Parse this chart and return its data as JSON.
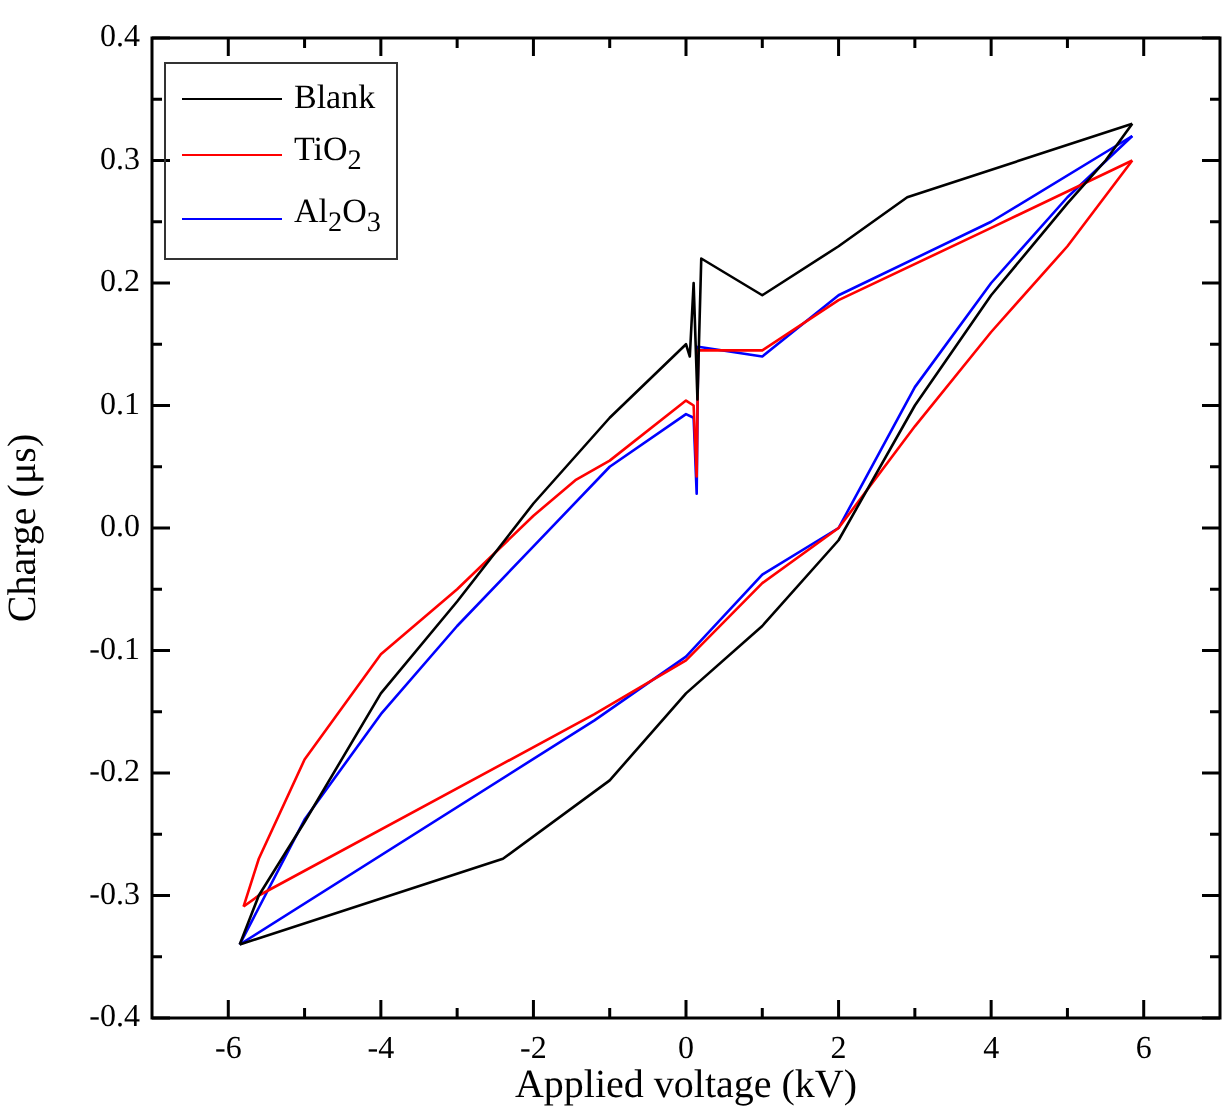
{
  "chart_data": {
    "type": "line",
    "xlabel": "Applied voltage (kV)",
    "ylabel": "Charge (μs)",
    "xlim": [
      -7,
      7
    ],
    "ylim": [
      -0.4,
      0.4
    ],
    "xticks": [
      -6,
      {
        "value": -5,
        "label": null
      },
      -4,
      {
        "value": -3,
        "label": null
      },
      -2,
      {
        "value": -1,
        "label": null
      },
      0,
      {
        "value": 1,
        "label": null
      },
      2,
      {
        "value": 3,
        "label": null
      },
      4,
      {
        "value": 5,
        "label": null
      },
      6
    ],
    "yticks": [
      {
        "value": -0.4,
        "label": "-0.4"
      },
      {
        "value": -0.35,
        "label": null
      },
      {
        "value": -0.3,
        "label": "-0.3"
      },
      {
        "value": -0.25,
        "label": null
      },
      {
        "value": -0.2,
        "label": "-0.2"
      },
      {
        "value": -0.15,
        "label": null
      },
      {
        "value": -0.1,
        "label": "-0.1"
      },
      {
        "value": -0.05,
        "label": null
      },
      {
        "value": 0,
        "label": "0.0"
      },
      {
        "value": 0.05,
        "label": null
      },
      {
        "value": 0.1,
        "label": "0.1"
      },
      {
        "value": 0.15,
        "label": null
      },
      {
        "value": 0.2,
        "label": "0.2"
      },
      {
        "value": 0.25,
        "label": null
      },
      {
        "value": 0.3,
        "label": "0.3"
      },
      {
        "value": 0.35,
        "label": null
      },
      {
        "value": 0.4,
        "label": "0.4"
      }
    ],
    "grid": false,
    "legend": "top left",
    "marker": "none",
    "line_style": "solid",
    "series": [
      {
        "name": "Blank",
        "color": "#000000",
        "x": [
          -5.85,
          -5.6,
          -5,
          -4,
          -3,
          -2,
          -1,
          0,
          0.05,
          0.1,
          0.15,
          0.2,
          1,
          2,
          2.9,
          5.85
        ],
        "values": [
          -0.34,
          -0.3,
          -0.24,
          -0.135,
          -0.06,
          0.02,
          0.09,
          0.15,
          0.14,
          0.2,
          0.105,
          0.22,
          0.19,
          0.23,
          0.27,
          0.33
        ]
      },
      {
        "color": "#000000",
        "x": [
          -5.85,
          -2.4,
          -1,
          0,
          1,
          2,
          3,
          4,
          5,
          5.5,
          5.85
        ],
        "values": [
          -0.34,
          -0.27,
          -0.206,
          -0.135,
          -0.08,
          -0.01,
          0.1,
          0.19,
          0.265,
          0.3,
          0.33
        ]
      },
      {
        "name": "TiO$_{2}$",
        "color": "#ff0000",
        "x": [
          -5.8,
          -5.6,
          -5,
          -4,
          -3,
          -2,
          -1.45,
          -1,
          0,
          0.1,
          0.14,
          0.16,
          1,
          2,
          4,
          5.85
        ],
        "values": [
          -0.309,
          -0.27,
          -0.189,
          -0.103,
          -0.05,
          0.01,
          0.039,
          0.055,
          0.104,
          0.1,
          0.042,
          0.145,
          0.145,
          0.186,
          0.245,
          0.3
        ]
      },
      {
        "color": "#ff0000",
        "x": [
          -5.8,
          -5.6,
          -1.2,
          0,
          1,
          2,
          3,
          4,
          5,
          5.85
        ],
        "values": [
          -0.309,
          -0.3,
          -0.152,
          -0.108,
          -0.045,
          0.0,
          0.083,
          0.16,
          0.23,
          0.3
        ]
      },
      {
        "name": "Al$_{2}$O$_{3}$",
        "color": "#0000ff",
        "x": [
          -5.85,
          -5.6,
          -5,
          -4,
          -3,
          -2,
          -1,
          0,
          0.1,
          0.14,
          0.16,
          1,
          2,
          4,
          5.85
        ],
        "values": [
          -0.34,
          -0.31,
          -0.238,
          -0.152,
          -0.08,
          -0.015,
          0.05,
          0.093,
          0.09,
          0.028,
          0.148,
          0.14,
          0.19,
          0.25,
          0.32
        ]
      },
      {
        "color": "#0000ff",
        "x": [
          -5.85,
          -1.2,
          0,
          1,
          2,
          3,
          4,
          5,
          5.85
        ],
        "values": [
          -0.34,
          -0.157,
          -0.105,
          -0.038,
          0.0,
          0.115,
          0.2,
          0.27,
          0.32
        ]
      }
    ]
  }
}
